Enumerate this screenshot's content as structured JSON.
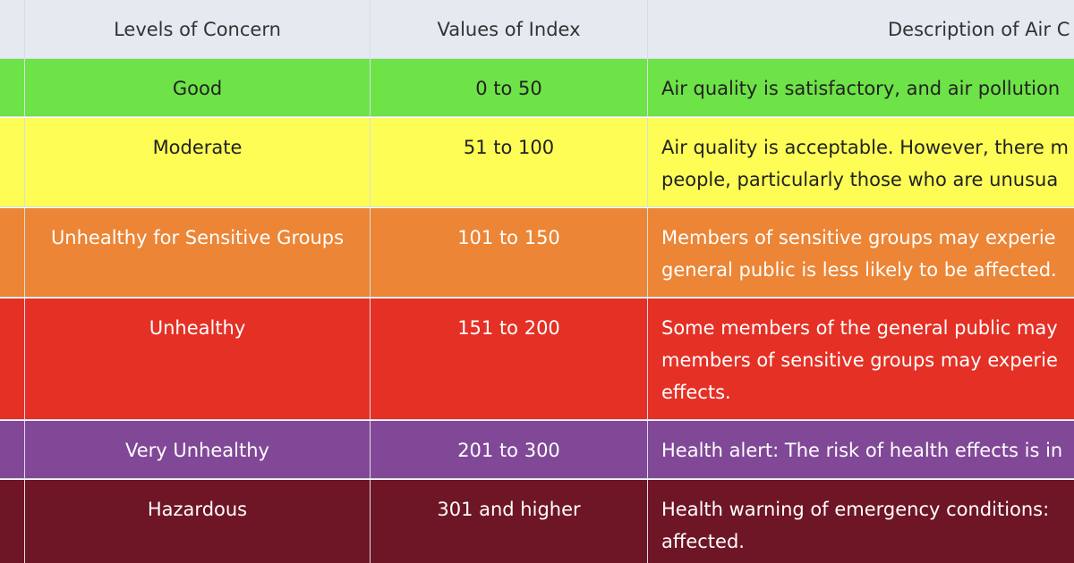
{
  "table": {
    "header": [
      "Levels of Concern",
      "Values of Index",
      "Description of Air C"
    ],
    "rows": [
      {
        "color": "#6de347",
        "text_color": "#222222",
        "level": "Good",
        "index": "0 to 50",
        "description": [
          "Air quality is satisfactory, and air pollution"
        ]
      },
      {
        "color": "#fdfd55",
        "text_color": "#222222",
        "level": "Moderate",
        "index": "51 to 100",
        "description": [
          "Air quality is acceptable. However, there m",
          "people, particularly those who are unusua"
        ]
      },
      {
        "color": "#ec8535",
        "text_color": "#ffffff",
        "level": "Unhealthy for Sensitive Groups",
        "index": "101 to 150",
        "description": [
          "Members of sensitive groups may experie",
          "general public is less likely to be affected."
        ]
      },
      {
        "color": "#e53025",
        "text_color": "#ffffff",
        "level": "Unhealthy",
        "index": "151 to 200",
        "description": [
          "Some members of the general public may",
          "members of sensitive groups may experie",
          "effects."
        ]
      },
      {
        "color": "#814897",
        "text_color": "#ffffff",
        "level": "Very Unhealthy",
        "index": "201 to 300",
        "description": [
          "Health alert: The risk of health effects is in"
        ]
      },
      {
        "color": "#6e1526",
        "text_color": "#ffffff",
        "level": "Hazardous",
        "index": "301 and higher",
        "description": [
          "Health warning of emergency conditions:",
          "affected."
        ]
      }
    ]
  }
}
